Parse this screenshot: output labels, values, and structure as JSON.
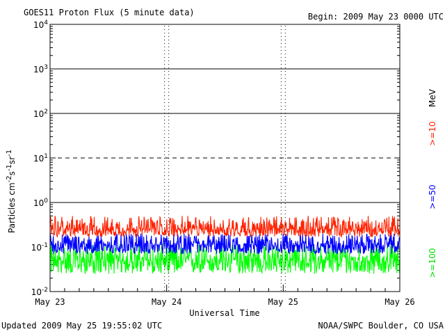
{
  "chart_data": {
    "type": "line",
    "title": "GOES11 Proton Flux (5 minute data)",
    "begin_label": "Begin: 2009 May 23 0000 UTC",
    "xlabel": "Universal Time",
    "ylabel": "Particles cm^-2 s^-1 sr^-1",
    "y_scale": "log",
    "ylim": [
      0.01,
      10000
    ],
    "y_ticks": [
      {
        "value": 0.01,
        "base": "10",
        "exp": "-2"
      },
      {
        "value": 0.1,
        "base": "10",
        "exp": "-1"
      },
      {
        "value": 1,
        "base": "10",
        "exp": "0"
      },
      {
        "value": 10,
        "base": "10",
        "exp": "1"
      },
      {
        "value": 100,
        "base": "10",
        "exp": "2"
      },
      {
        "value": 1000,
        "base": "10",
        "exp": "3"
      },
      {
        "value": 10000,
        "base": "10",
        "exp": "4"
      }
    ],
    "x_ticks": [
      "May 23",
      "May 24",
      "May 25",
      "May 26"
    ],
    "xlim": [
      "2009-05-23",
      "2009-05-26"
    ],
    "threshold_lines": [
      {
        "value": 1,
        "style": "solid"
      },
      {
        "value": 10,
        "style": "dashed"
      },
      {
        "value": 100,
        "style": "solid"
      },
      {
        "value": 1000,
        "style": "solid"
      }
    ],
    "series": [
      {
        "name": ">=10",
        "color": "#ff2200",
        "min": 0.17,
        "max": 0.5,
        "typical": 0.25
      },
      {
        "name": ">=50",
        "color": "#0000ff",
        "min": 0.07,
        "max": 0.2,
        "typical": 0.11
      },
      {
        "name": ">=100",
        "color": "#00ff00",
        "min": 0.025,
        "max": 0.12,
        "typical": 0.05
      }
    ],
    "legend_unit": "MeV",
    "legend_position": "right"
  },
  "footer": {
    "updated": "Updated 2009 May 25 19:55:02 UTC",
    "credit": "NOAA/SWPC Boulder, CO USA"
  }
}
